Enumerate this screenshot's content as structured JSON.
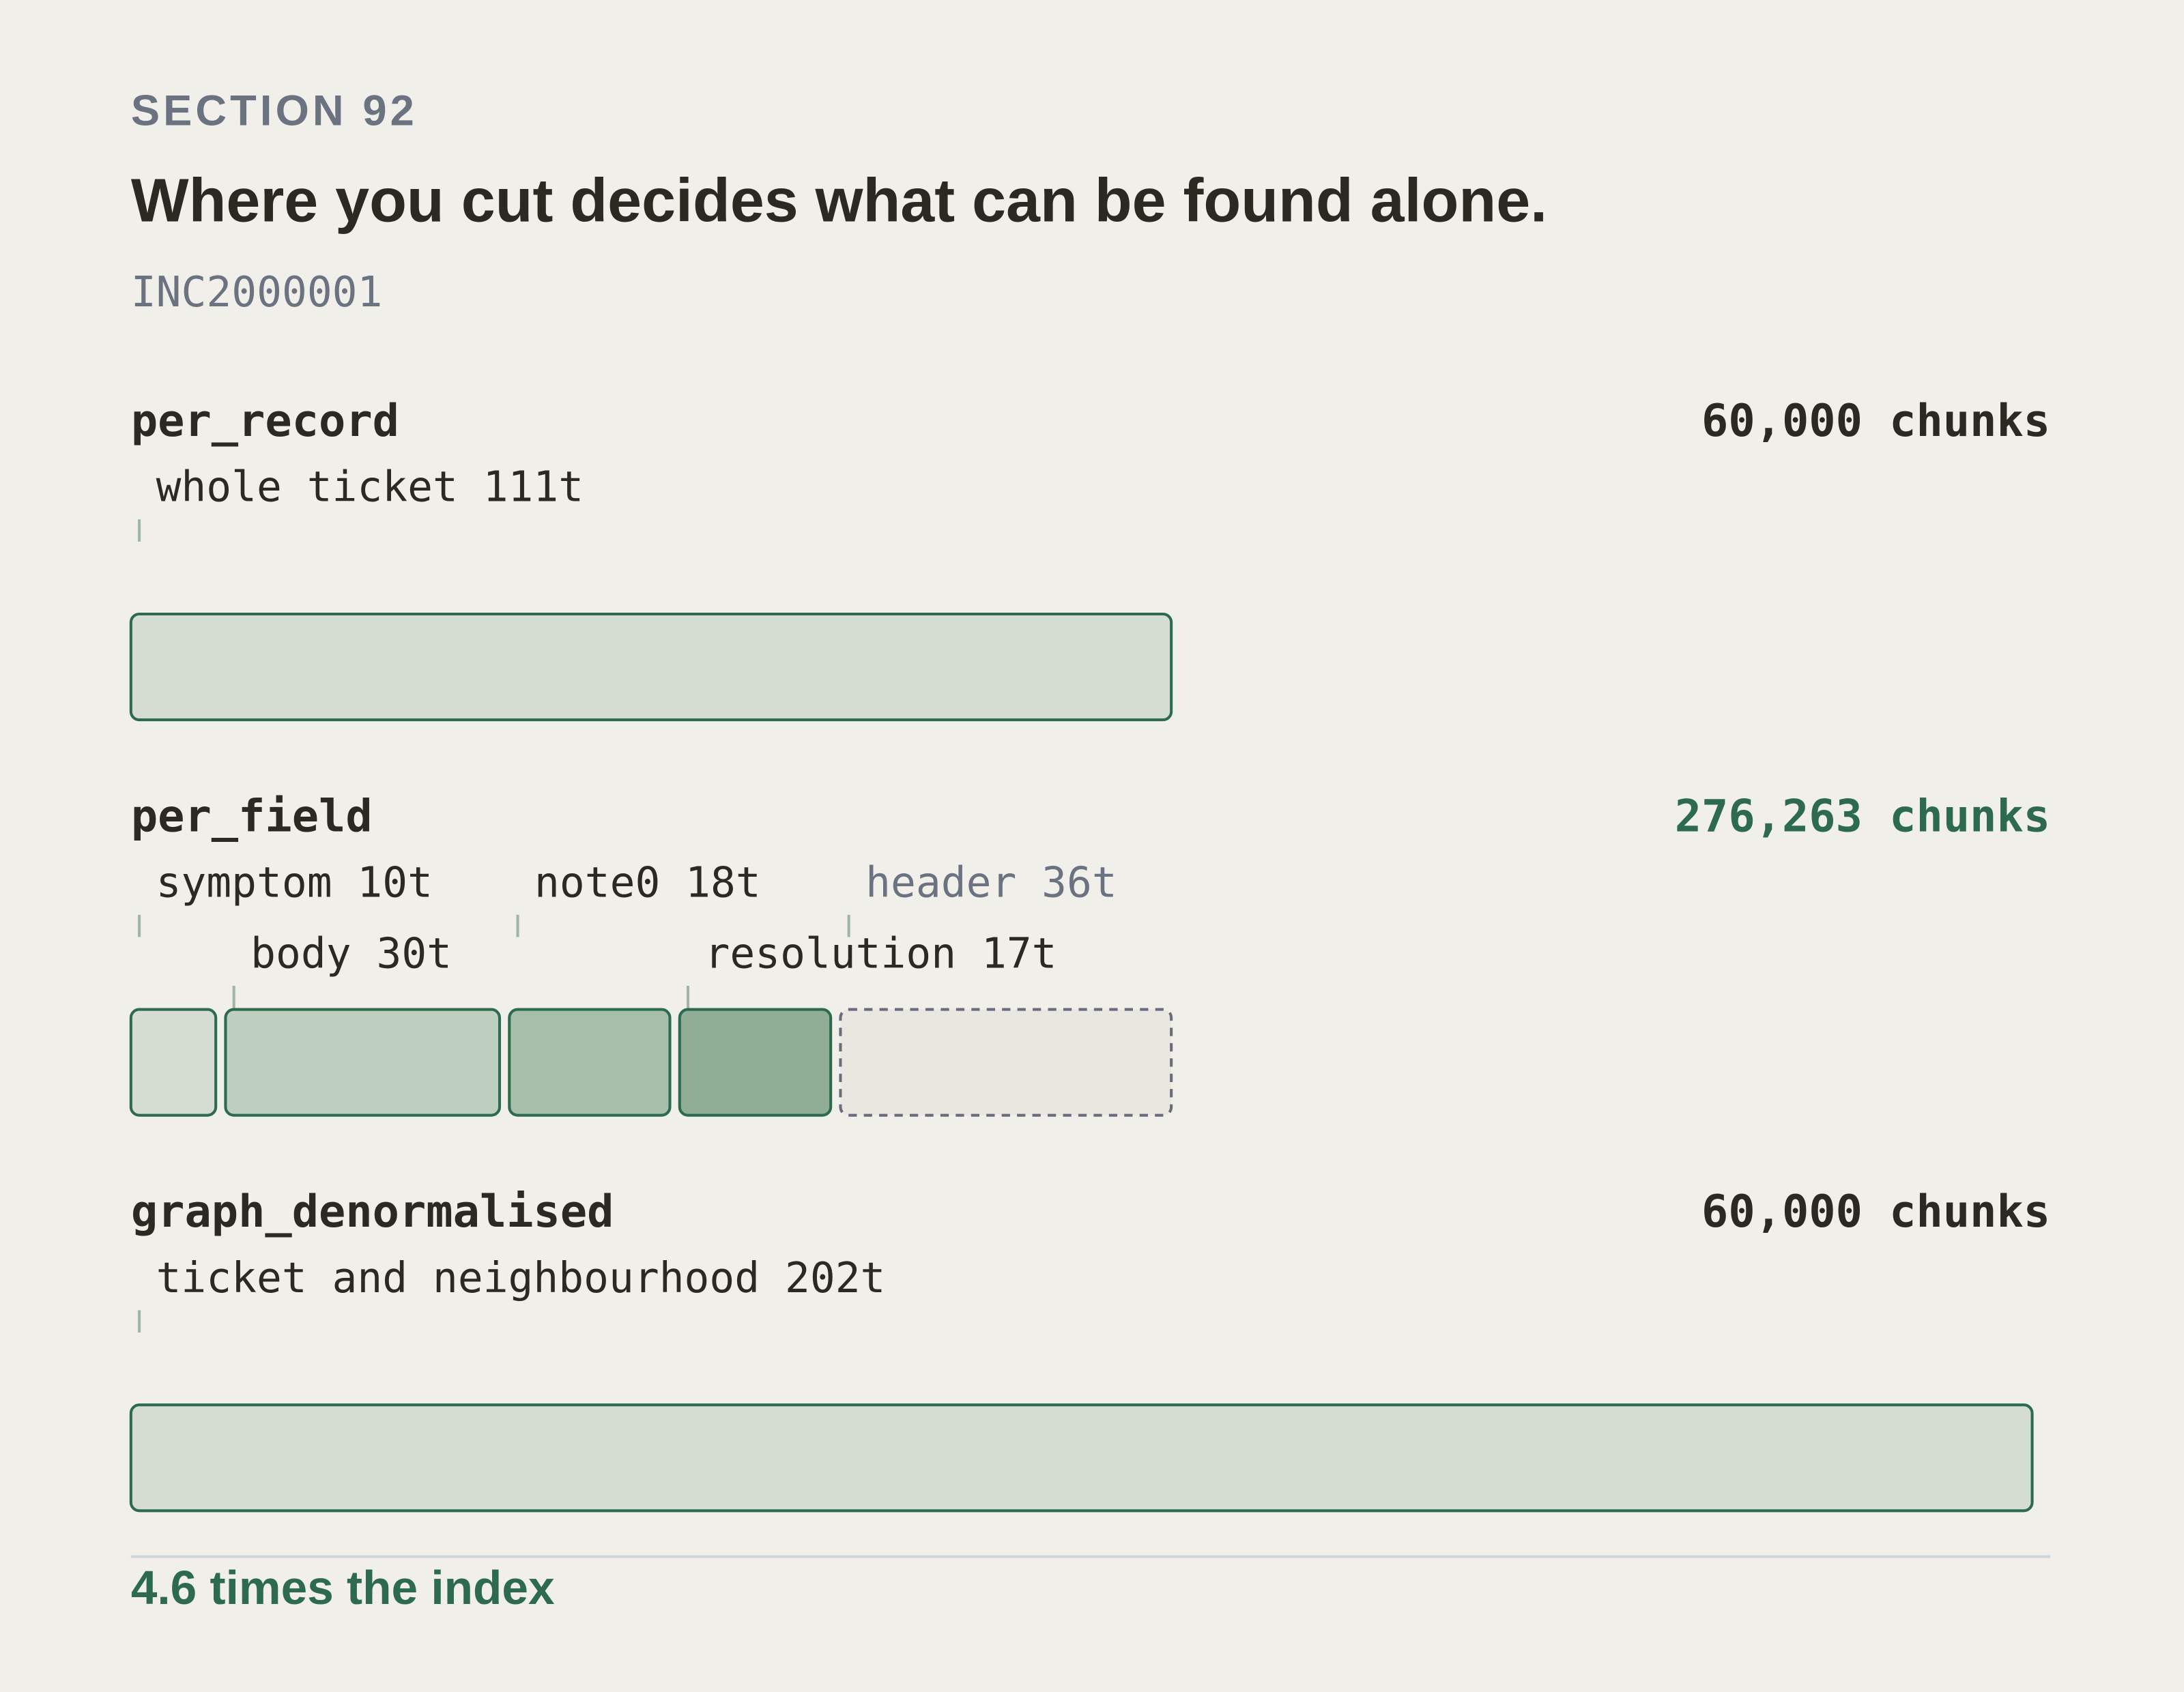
{
  "section": "SECTION 92",
  "title": "Where you cut decides what can be found alone.",
  "record_id": "INC2000001",
  "rows": [
    {
      "name": "per_record",
      "chunks": "60,000 chunks",
      "chunks_color": "#2a2a22",
      "segments": [
        {
          "label": "whole ticket 111t",
          "tokens": 111,
          "fill": "#d5ddd3",
          "style": "solid"
        }
      ]
    },
    {
      "name": "per_field",
      "chunks": "276,263 chunks",
      "chunks_color": "#2d6a4f",
      "segments": [
        {
          "label": "symptom 10t",
          "tokens": 10,
          "fill": "#d5ddd3",
          "style": "solid"
        },
        {
          "label": "body 30t",
          "tokens": 30,
          "fill": "#bfcfbf",
          "style": "solid"
        },
        {
          "label": "note0 18t",
          "tokens": 18,
          "fill": "#a5bfaa",
          "style": "solid"
        },
        {
          "label": "resolution 17t",
          "tokens": 17,
          "fill": "#8fae95",
          "style": "solid"
        },
        {
          "label": "header 36t",
          "tokens": 36,
          "fill": "#e8e8e1",
          "style": "dashed"
        }
      ]
    },
    {
      "name": "graph_denormalised",
      "chunks": "60,000 chunks",
      "chunks_color": "#2a2a22",
      "segments": [
        {
          "label": "ticket and neighbourhood 202t",
          "tokens": 202,
          "fill": "#d5ddd3",
          "style": "solid"
        }
      ]
    }
  ],
  "footer": "4.6 times the index"
}
